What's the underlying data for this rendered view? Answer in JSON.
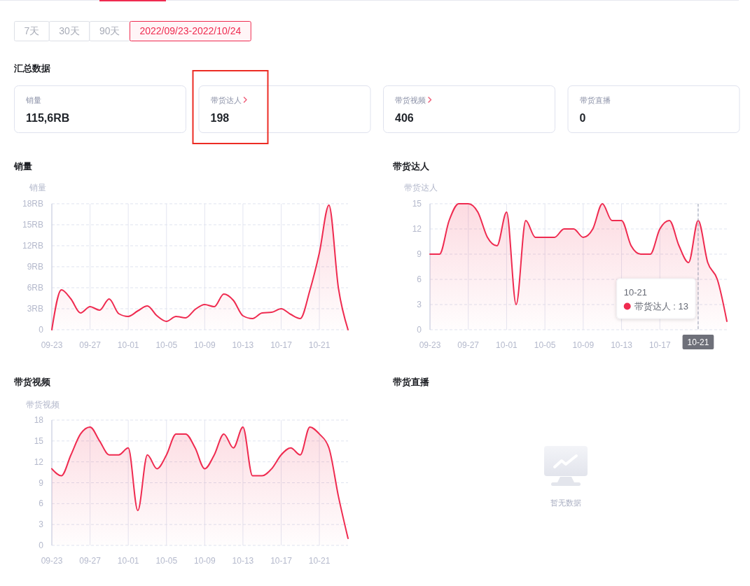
{
  "chart_data": [
    {
      "type": "other",
      "annotations": [
        "7天",
        "30天",
        "90天",
        "2022/09/23-2022/10/24"
      ]
    },
    {
      "type": "other",
      "title": "汇总数据",
      "annotations": [
        "销量",
        "115,6RB",
        "带货达人",
        "198",
        "带货视频",
        "406",
        "带货直播",
        "0"
      ]
    },
    {
      "type": "area",
      "title": "销量",
      "ylabel": "销量",
      "x": [
        "--09-23",
        "--09-24",
        "--09-25",
        "--09-26",
        "--09-27",
        "--09-28",
        "--09-29",
        "--09-30",
        "--10-01",
        "--10-02",
        "--10-03",
        "--10-04",
        "--10-05",
        "--10-06",
        "--10-07",
        "--10-08",
        "--10-09",
        "--10-10",
        "--10-11",
        "--10-12",
        "--10-13",
        "--10-14",
        "--10-15",
        "--10-16",
        "--10-17",
        "--10-18",
        "--10-19",
        "--10-20",
        "--10-21",
        "--10-22",
        "--10-23",
        "--10-24"
      ],
      "xlim": [
        "--09-23",
        "--10-24"
      ],
      "xticks": [
        {
          "value": "--09-23",
          "label": "09-23"
        },
        {
          "value": "--09-27",
          "label": "09-27"
        },
        {
          "value": "--10-01",
          "label": "10-01"
        },
        {
          "value": "--10-05",
          "label": "10-05"
        },
        {
          "value": "--10-09",
          "label": "10-09"
        },
        {
          "value": "--10-13",
          "label": "10-13"
        },
        {
          "value": "--10-17",
          "label": "10-17"
        },
        {
          "value": "--10-21",
          "label": "10-21"
        }
      ],
      "series": [
        {
          "color": "#ef2b50",
          "values": [
            0,
            5.7,
            4.4,
            2.4,
            3.3,
            2.8,
            4.4,
            2.3,
            1.9,
            2.7,
            3.4,
            2.0,
            1.2,
            1.9,
            1.7,
            2.9,
            3.6,
            3.3,
            5.1,
            4.2,
            2.0,
            1.6,
            2.4,
            2.5,
            3.0,
            2.2,
            1.6,
            5.6,
            11,
            17.8,
            5.9,
            0
          ]
        }
      ],
      "ylim": [
        0,
        18
      ],
      "yticks": [
        0,
        {
          "value": 3,
          "label": "3RB"
        },
        {
          "value": 6,
          "label": "6RB"
        },
        {
          "value": 9,
          "label": "9RB"
        },
        {
          "value": 12,
          "label": "12RB"
        },
        {
          "value": 15,
          "label": "15RB"
        },
        {
          "value": 18,
          "label": "18RB"
        }
      ],
      "grid": true
    },
    {
      "type": "area",
      "title": "带货达人",
      "ylabel": "带货达人",
      "x": [
        "--09-23",
        "--09-24",
        "--09-25",
        "--09-26",
        "--09-27",
        "--09-28",
        "--09-29",
        "--09-30",
        "--10-01",
        "--10-02",
        "--10-03",
        "--10-04",
        "--10-05",
        "--10-06",
        "--10-07",
        "--10-08",
        "--10-09",
        "--10-10",
        "--10-11",
        "--10-12",
        "--10-13",
        "--10-14",
        "--10-15",
        "--10-16",
        "--10-17",
        "--10-18",
        "--10-19",
        "--10-20",
        "--10-21",
        "--10-22",
        "--10-23",
        "--10-24"
      ],
      "xlim": [
        "--09-23",
        "--10-24"
      ],
      "xticks": [
        {
          "value": "--09-23",
          "label": "09-23"
        },
        {
          "value": "--09-27",
          "label": "09-27"
        },
        {
          "value": "--10-01",
          "label": "10-01"
        },
        {
          "value": "--10-05",
          "label": "10-05"
        },
        {
          "value": "--10-09",
          "label": "10-09"
        },
        {
          "value": "--10-13",
          "label": "10-13"
        },
        {
          "value": "--10-17",
          "label": "10-17"
        },
        {
          "value": "--10-21",
          "label": null
        }
      ],
      "series": [
        {
          "color": "#ef2b50",
          "values": [
            9,
            9,
            13,
            15,
            15,
            14,
            11,
            10,
            14,
            3,
            13,
            11,
            11,
            11,
            12,
            12,
            11,
            12,
            15,
            13,
            13,
            10,
            9,
            9,
            12,
            13,
            10,
            8,
            13,
            8,
            6,
            1
          ]
        }
      ],
      "ylim": [
        0,
        15
      ],
      "yticks": [
        0,
        3,
        6,
        9,
        12,
        15
      ],
      "grid": true,
      "ref_lines": [
        {
          "axis": "x",
          "value": "--10-21",
          "label": "10-21"
        }
      ],
      "annotations": [
        "10-21\n带货达人 : 13"
      ]
    },
    {
      "type": "area",
      "title": "带货视频",
      "ylabel": "带货视频",
      "x": [
        "--09-23",
        "--09-24",
        "--09-25",
        "--09-26",
        "--09-27",
        "--09-28",
        "--09-29",
        "--09-30",
        "--10-01",
        "--10-02",
        "--10-03",
        "--10-04",
        "--10-05",
        "--10-06",
        "--10-07",
        "--10-08",
        "--10-09",
        "--10-10",
        "--10-11",
        "--10-12",
        "--10-13",
        "--10-14",
        "--10-15",
        "--10-16",
        "--10-17",
        "--10-18",
        "--10-19",
        "--10-20",
        "--10-21",
        "--10-22",
        "--10-23",
        "--10-24"
      ],
      "xlim": [
        "--09-23",
        "--10-24"
      ],
      "xticks": [
        {
          "value": "--09-23",
          "label": "09-23"
        },
        {
          "value": "--09-27",
          "label": "09-27"
        },
        {
          "value": "--10-01",
          "label": "10-01"
        },
        {
          "value": "--10-05",
          "label": "10-05"
        },
        {
          "value": "--10-09",
          "label": "10-09"
        },
        {
          "value": "--10-13",
          "label": "10-13"
        },
        {
          "value": "--10-17",
          "label": "10-17"
        },
        {
          "value": "--10-21",
          "label": "10-21"
        }
      ],
      "series": [
        {
          "color": "#ef2b50",
          "values": [
            11,
            10,
            13,
            16,
            17,
            15,
            13,
            13,
            14,
            5,
            13,
            11,
            13,
            16,
            16,
            14,
            11,
            13,
            16,
            14,
            17,
            10,
            10,
            11,
            13,
            14,
            13,
            17,
            16,
            14,
            7,
            1
          ]
        }
      ],
      "ylim": [
        0,
        18
      ],
      "yticks": [
        0,
        3,
        6,
        9,
        12,
        15,
        18
      ],
      "grid": true
    },
    {
      "type": "other",
      "title": "带货直播",
      "annotations": [
        "暂无数据"
      ]
    }
  ]
}
